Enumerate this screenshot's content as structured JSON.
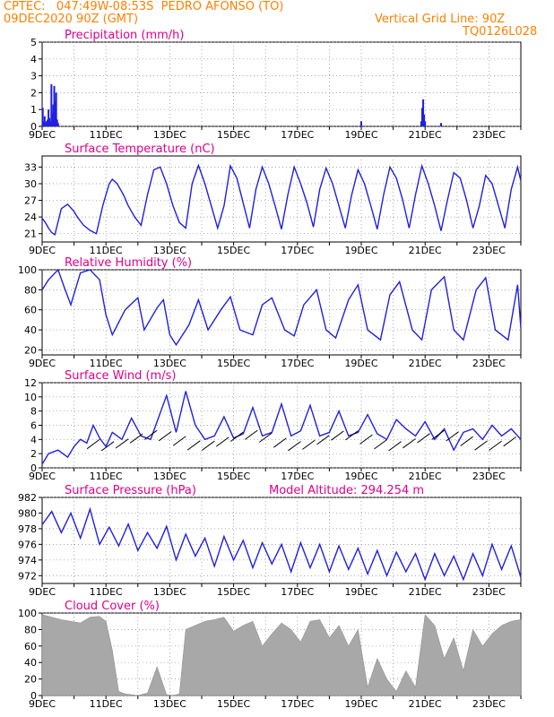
{
  "header": {
    "line1": "CPTEC:   047:49W-08:53S  PEDRO AFONSO (TO)",
    "line2": "09DEC2020 90Z (GMT)",
    "grid_line": "Vertical Grid Line: 90Z",
    "code": "TQ0126L028"
  },
  "colors": {
    "header": "#ff8000",
    "title": "#e0008c",
    "series": "#2020e0",
    "cloud": "#a8a8a8"
  },
  "x_tick_labels": [
    "9DEC",
    "11DEC",
    "13DEC",
    "15DEC",
    "17DEC",
    "19DEC",
    "21DEC",
    "23DEC"
  ],
  "x_range_days": [
    9,
    24
  ],
  "model_altitude": "Model Altitude: 294.254 m",
  "chart_data": [
    {
      "type": "bar",
      "title": "Precipitation (mm/h)",
      "ylim": [
        0,
        5
      ],
      "yticks": [
        "0",
        "1",
        "2",
        "3",
        "4",
        "5"
      ],
      "x": [
        9.02,
        9.05,
        9.08,
        9.11,
        9.14,
        9.17,
        9.2,
        9.23,
        9.26,
        9.29,
        9.32,
        9.35,
        9.38,
        9.41,
        9.44,
        9.47,
        9.5,
        20.88,
        20.91,
        20.94,
        20.97,
        21.0,
        19.0,
        21.5
      ],
      "values": [
        1.1,
        0.3,
        0.6,
        0.2,
        0.3,
        0.4,
        1.0,
        0.5,
        0.3,
        2.5,
        0.8,
        1.3,
        2.4,
        1.5,
        2.0,
        0.4,
        0.2,
        0.3,
        1.1,
        1.6,
        0.7,
        0.3,
        0.3,
        0.2
      ]
    },
    {
      "type": "line",
      "title": "Surface Temperature (nC)",
      "ylim": [
        19.5,
        35
      ],
      "yticks": [
        "21",
        "24",
        "27",
        "30",
        "33"
      ],
      "x": [
        9.0,
        9.1,
        9.2,
        9.3,
        9.4,
        9.6,
        9.8,
        10.0,
        10.1,
        10.3,
        10.5,
        10.7,
        10.9,
        11.1,
        11.2,
        11.35,
        11.55,
        11.7,
        11.9,
        12.1,
        12.3,
        12.5,
        12.7,
        12.9,
        13.1,
        13.3,
        13.5,
        13.7,
        13.9,
        14.1,
        14.3,
        14.5,
        14.7,
        14.9,
        15.1,
        15.3,
        15.5,
        15.7,
        15.9,
        16.1,
        16.3,
        16.5,
        16.7,
        16.9,
        17.1,
        17.3,
        17.5,
        17.7,
        17.9,
        18.1,
        18.3,
        18.5,
        18.7,
        18.9,
        19.1,
        19.3,
        19.5,
        19.7,
        19.9,
        20.1,
        20.3,
        20.5,
        20.7,
        20.9,
        21.1,
        21.3,
        21.5,
        21.7,
        21.9,
        22.1,
        22.3,
        22.5,
        22.7,
        22.9,
        23.1,
        23.3,
        23.5,
        23.7,
        23.9,
        24.0
      ],
      "values": [
        23.8,
        23.0,
        22.0,
        21.2,
        20.8,
        25.5,
        26.3,
        25.0,
        24.0,
        22.5,
        21.6,
        21.0,
        26.0,
        30.0,
        30.8,
        30.0,
        28.0,
        26.0,
        24.0,
        22.5,
        28.0,
        32.5,
        33.0,
        30.0,
        26.0,
        23.0,
        22.0,
        30.0,
        33.3,
        30.0,
        26.0,
        22.0,
        26.0,
        33.2,
        31.0,
        26.5,
        22.0,
        29.0,
        33.0,
        30.0,
        26.0,
        21.8,
        28.0,
        33.0,
        30.0,
        26.5,
        22.2,
        29.0,
        32.8,
        30.0,
        26.0,
        22.0,
        28.0,
        32.5,
        30.0,
        26.0,
        21.8,
        28.0,
        33.0,
        31.0,
        27.0,
        22.0,
        28.0,
        33.2,
        30.0,
        26.0,
        21.5,
        27.0,
        32.0,
        31.0,
        27.0,
        22.0,
        26.0,
        31.5,
        30.0,
        26.0,
        22.0,
        29.0,
        33.0,
        30.5
      ]
    },
    {
      "type": "line",
      "title": "Relative Humidity (%)",
      "ylim": [
        15,
        100
      ],
      "yticks": [
        "20",
        "40",
        "60",
        "80",
        "100"
      ],
      "x": [
        9.0,
        9.2,
        9.5,
        9.7,
        9.9,
        10.2,
        10.5,
        10.8,
        11.0,
        11.2,
        11.6,
        12.0,
        12.2,
        12.6,
        12.8,
        13.0,
        13.2,
        13.6,
        13.9,
        14.2,
        14.6,
        14.9,
        15.2,
        15.6,
        15.9,
        16.2,
        16.6,
        16.9,
        17.2,
        17.6,
        17.9,
        18.2,
        18.6,
        18.9,
        19.2,
        19.6,
        19.9,
        20.2,
        20.6,
        20.9,
        21.2,
        21.6,
        21.9,
        22.2,
        22.6,
        22.9,
        23.2,
        23.6,
        23.9,
        24.0
      ],
      "values": [
        80,
        90,
        100,
        82,
        65,
        97,
        100,
        90,
        55,
        35,
        60,
        72,
        40,
        62,
        70,
        35,
        25,
        45,
        70,
        40,
        60,
        73,
        40,
        35,
        65,
        72,
        40,
        34,
        65,
        80,
        40,
        32,
        70,
        85,
        40,
        30,
        75,
        88,
        40,
        30,
        80,
        93,
        40,
        30,
        80,
        92,
        40,
        30,
        85,
        42
      ]
    },
    {
      "type": "line",
      "title": "Surface Wind (m/s)",
      "ylim": [
        0,
        12
      ],
      "yticks": [
        "0",
        "2",
        "4",
        "6",
        "8",
        "10",
        "12"
      ],
      "x": [
        9.0,
        9.2,
        9.5,
        9.8,
        10.0,
        10.2,
        10.4,
        10.6,
        10.8,
        11.0,
        11.2,
        11.5,
        11.8,
        12.1,
        12.4,
        12.6,
        12.9,
        13.2,
        13.5,
        13.8,
        14.1,
        14.4,
        14.7,
        15.0,
        15.3,
        15.6,
        15.9,
        16.2,
        16.5,
        16.8,
        17.1,
        17.4,
        17.7,
        18.0,
        18.3,
        18.6,
        18.9,
        19.2,
        19.5,
        19.8,
        20.1,
        20.4,
        20.7,
        21.0,
        21.3,
        21.6,
        21.9,
        22.2,
        22.5,
        22.8,
        23.1,
        23.4,
        23.7,
        24.0
      ],
      "values": [
        0.5,
        2.0,
        2.5,
        1.5,
        3.0,
        4.0,
        3.5,
        6.0,
        4.2,
        3.0,
        5.0,
        4.0,
        7.0,
        4.5,
        4.0,
        6.5,
        10.2,
        5.0,
        10.8,
        6.0,
        4.0,
        4.5,
        7.2,
        4.2,
        4.8,
        8.5,
        4.5,
        5.0,
        9.0,
        4.5,
        5.2,
        8.8,
        4.5,
        5.0,
        8.0,
        4.5,
        5.0,
        7.5,
        4.8,
        4.0,
        6.8,
        5.5,
        4.5,
        6.5,
        4.0,
        5.5,
        2.5,
        5.0,
        5.5,
        4.0,
        6.0,
        4.5,
        5.5,
        4.0
      ]
    },
    {
      "type": "line",
      "title": "Surface Pressure (hPa)",
      "ylim": [
        971,
        982
      ],
      "yticks": [
        "972",
        "974",
        "976",
        "978",
        "980",
        "982"
      ],
      "x": [
        9.0,
        9.3,
        9.6,
        9.9,
        10.2,
        10.5,
        10.8,
        11.1,
        11.4,
        11.7,
        12.0,
        12.3,
        12.6,
        12.9,
        13.2,
        13.5,
        13.8,
        14.1,
        14.4,
        14.7,
        15.0,
        15.3,
        15.6,
        15.9,
        16.2,
        16.5,
        16.8,
        17.1,
        17.4,
        17.7,
        18.0,
        18.3,
        18.6,
        18.9,
        19.2,
        19.5,
        19.8,
        20.1,
        20.4,
        20.7,
        21.0,
        21.3,
        21.6,
        21.9,
        22.2,
        22.5,
        22.8,
        23.1,
        23.4,
        23.7,
        24.0
      ],
      "values": [
        978.5,
        980.2,
        977.5,
        980.0,
        976.8,
        980.5,
        976.0,
        978.2,
        975.8,
        978.6,
        975.2,
        977.5,
        975.5,
        978.3,
        974.0,
        977.3,
        974.5,
        976.8,
        973.2,
        977.0,
        974.0,
        976.5,
        973.0,
        976.2,
        973.5,
        976.0,
        972.5,
        976.2,
        973.0,
        976.0,
        972.5,
        975.8,
        972.8,
        975.5,
        972.2,
        975.2,
        972.0,
        975.0,
        972.5,
        974.8,
        971.5,
        974.8,
        972.0,
        974.5,
        971.5,
        974.8,
        972.0,
        976.0,
        972.8,
        975.8,
        971.8
      ]
    },
    {
      "type": "area",
      "title": "Cloud Cover (%)",
      "ylim": [
        0,
        100
      ],
      "yticks": [
        "0",
        "20",
        "40",
        "60",
        "80",
        "100"
      ],
      "x": [
        9.0,
        9.3,
        9.6,
        9.9,
        10.2,
        10.5,
        10.8,
        11.0,
        11.2,
        11.4,
        11.6,
        11.8,
        12.0,
        12.3,
        12.6,
        12.9,
        13.1,
        13.3,
        13.5,
        13.8,
        14.1,
        14.4,
        14.7,
        15.0,
        15.3,
        15.6,
        15.9,
        16.2,
        16.5,
        16.8,
        17.1,
        17.4,
        17.7,
        18.0,
        18.3,
        18.6,
        18.9,
        19.2,
        19.5,
        19.8,
        20.1,
        20.4,
        20.7,
        21.0,
        21.3,
        21.6,
        21.9,
        22.2,
        22.5,
        22.8,
        23.1,
        23.4,
        23.7,
        24.0
      ],
      "values": [
        98,
        95,
        92,
        90,
        88,
        95,
        96,
        90,
        55,
        5,
        2,
        1,
        0,
        3,
        35,
        1,
        0,
        2,
        80,
        85,
        90,
        92,
        95,
        78,
        85,
        90,
        60,
        75,
        88,
        80,
        65,
        90,
        92,
        70,
        85,
        60,
        80,
        10,
        45,
        20,
        5,
        30,
        10,
        98,
        85,
        45,
        70,
        30,
        80,
        60,
        75,
        85,
        90,
        92
      ]
    }
  ]
}
